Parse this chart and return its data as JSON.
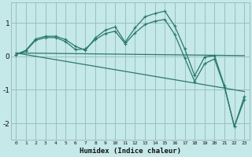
{
  "xlabel": "Humidex (Indice chaleur)",
  "xlim": [
    -0.5,
    23.5
  ],
  "ylim": [
    -2.5,
    1.6
  ],
  "background_color": "#c5e8e8",
  "grid_color": "#9bbfbf",
  "line_color": "#2a7a6a",
  "xticks": [
    0,
    1,
    2,
    3,
    4,
    5,
    6,
    7,
    8,
    9,
    10,
    11,
    12,
    13,
    14,
    15,
    16,
    17,
    18,
    19,
    20,
    21,
    22,
    23
  ],
  "yticks": [
    -2,
    -1,
    0,
    1
  ],
  "lines": [
    {
      "x": [
        0,
        1,
        2,
        3,
        4,
        5,
        6,
        7,
        8,
        9,
        10,
        11,
        12,
        13,
        14,
        15,
        16,
        17,
        18,
        19,
        20,
        21,
        22,
        23
      ],
      "y": [
        0.05,
        0.18,
        0.52,
        0.6,
        0.6,
        0.5,
        0.3,
        0.18,
        0.55,
        0.78,
        0.88,
        0.42,
        0.85,
        1.18,
        1.28,
        1.35,
        0.9,
        0.22,
        -0.58,
        -0.02,
        0.02,
        -0.88,
        -2.1,
        -1.2
      ],
      "has_markers": true
    },
    {
      "x": [
        0,
        1,
        2,
        3,
        4,
        5,
        6,
        7,
        8,
        9,
        10,
        11,
        12,
        13,
        14,
        15,
        16,
        17,
        18,
        19,
        20,
        21,
        22,
        23
      ],
      "y": [
        0.05,
        0.16,
        0.48,
        0.56,
        0.56,
        0.44,
        0.2,
        0.22,
        0.5,
        0.68,
        0.75,
        0.38,
        0.7,
        0.95,
        1.05,
        1.1,
        0.65,
        -0.05,
        -0.75,
        -0.22,
        -0.08,
        -0.92,
        -2.1,
        -1.3
      ],
      "has_markers": true
    },
    {
      "x": [
        0,
        23
      ],
      "y": [
        0.1,
        0.02
      ],
      "has_markers": false
    },
    {
      "x": [
        0,
        23
      ],
      "y": [
        0.1,
        -1.05
      ],
      "has_markers": false
    }
  ]
}
